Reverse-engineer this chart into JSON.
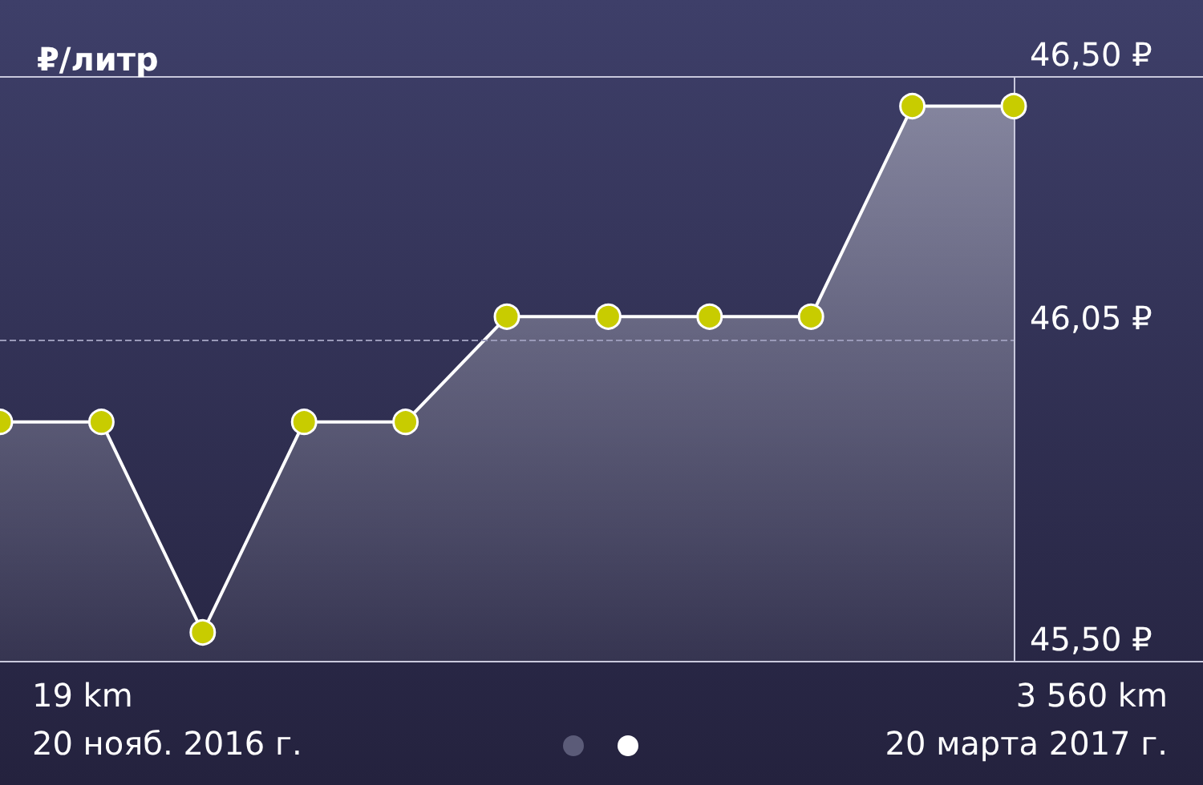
{
  "chart_data": {
    "type": "area",
    "title": "₽/литр",
    "categories": [
      null,
      null,
      null,
      null,
      null,
      null,
      null,
      null,
      null,
      null,
      null
    ],
    "series": [
      {
        "color": "#ffffff",
        "values": [
          45.91,
          45.91,
          45.55,
          45.91,
          45.91,
          46.09,
          46.09,
          46.09,
          46.09,
          46.45,
          46.45
        ]
      }
    ],
    "marker": "circle",
    "ylim": [
      45.5,
      46.5
    ],
    "yticks": [
      {
        "value": 45.5,
        "label": "45,50 ₽"
      },
      {
        "value": 46.05,
        "label": "46,05 ₽"
      },
      {
        "value": 46.5,
        "label": "46,50 ₽"
      }
    ],
    "ref_lines": [
      {
        "axis": "y",
        "value": 46.05,
        "line_style": "dashed",
        "color": "#9a9ab8"
      }
    ],
    "grid": false,
    "annotations": [
      "19 km",
      "20 нояб. 2016 г.",
      "3 560 km",
      "20 марта 2017 г."
    ]
  }
}
